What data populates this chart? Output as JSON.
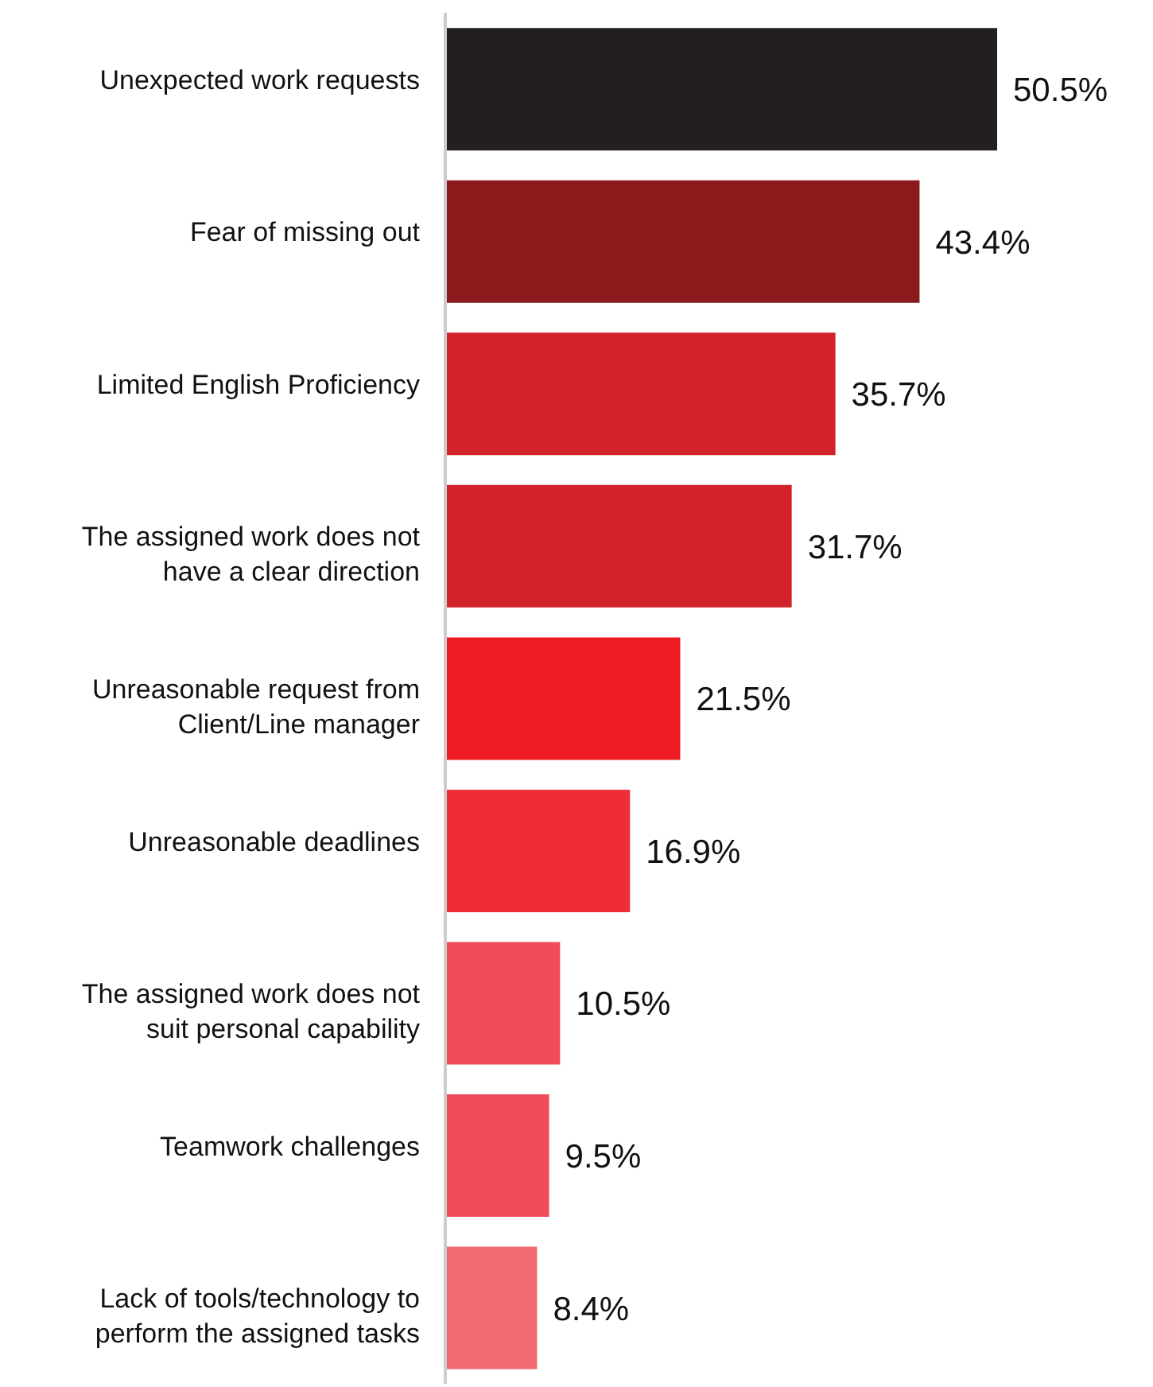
{
  "chart_data": {
    "type": "bar",
    "orientation": "horizontal",
    "categories": [
      "Unexpected work requests",
      "Fear of missing out",
      "Limited English Proficiency",
      "The assigned work does not have a clear direction",
      "Unreasonable request from Client/Line manager",
      "Unreasonable deadlines",
      "The assigned work does not suit personal capability",
      "Teamwork challenges",
      "Lack of tools/technology to perform the assigned tasks"
    ],
    "values": [
      50.5,
      43.4,
      35.7,
      31.7,
      21.5,
      16.9,
      10.5,
      9.5,
      8.4
    ],
    "value_labels": [
      "50.5%",
      "43.4%",
      "35.7%",
      "31.7%",
      "21.5%",
      "16.9%",
      "10.5%",
      "9.5%",
      "8.4%"
    ],
    "colors": [
      "#231f20",
      "#8b1a1c",
      "#d2232a",
      "#d2232a",
      "#ed1c24",
      "#ef2d36",
      "#f04c57",
      "#f04c57",
      "#f26b73"
    ]
  }
}
